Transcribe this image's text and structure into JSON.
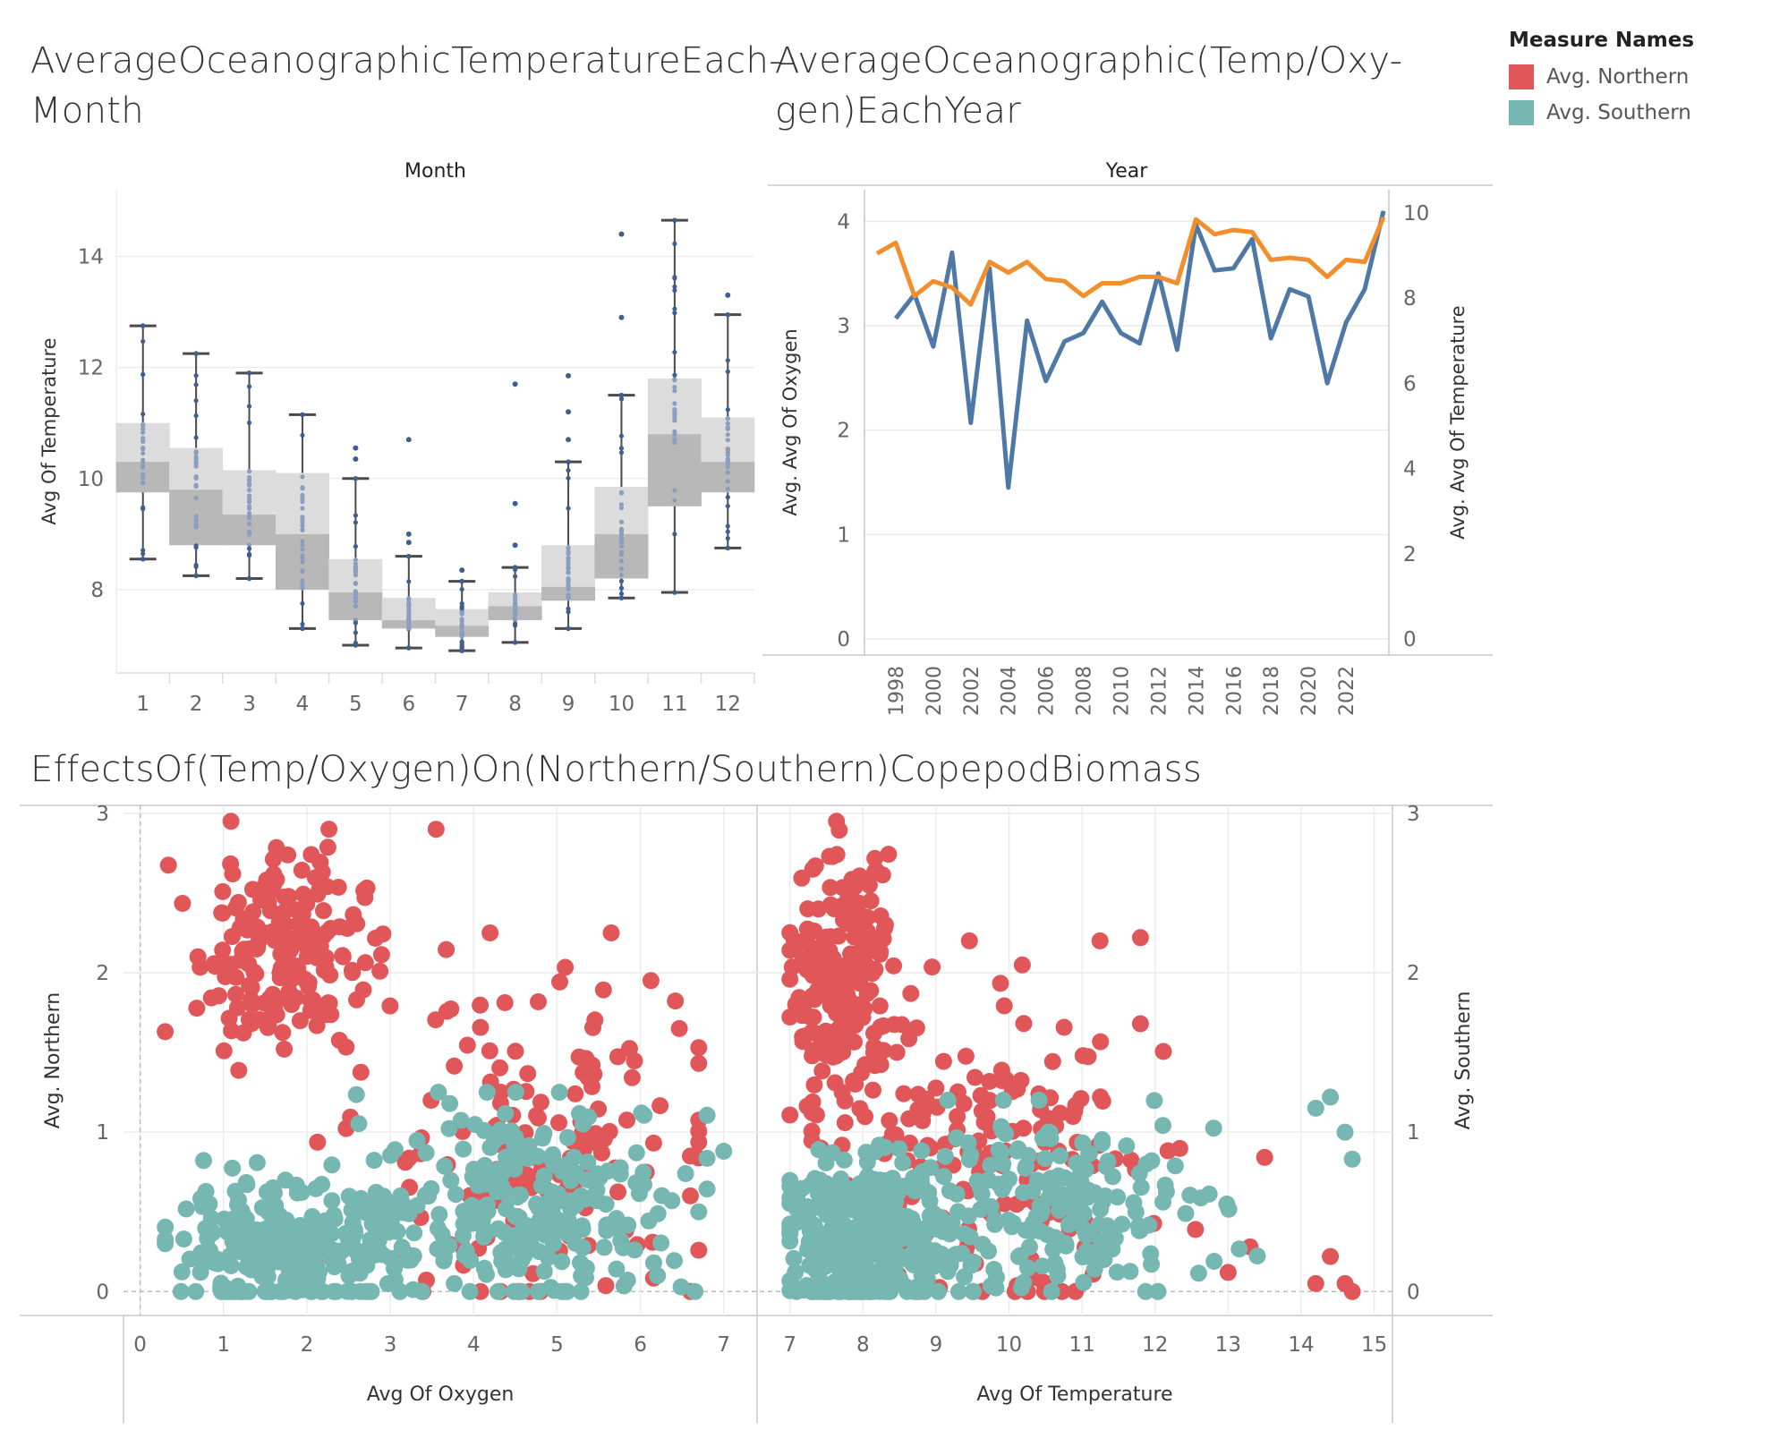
{
  "titles": {
    "box": "AverageOceanographicTemperatureEach-\nMonth",
    "line": "AverageOceanographic(Temp/Oxy-\ngen)EachYear",
    "scatter": "EffectsOf(Temp/Oxygen)On(Northern/Southern)CopepodBiomass"
  },
  "legend": {
    "title": "Measure Names",
    "items": [
      {
        "label": "Avg. Northern",
        "color": "#e15759"
      },
      {
        "label": "Avg. Southern",
        "color": "#76b7b2"
      }
    ]
  },
  "chart_data": [
    {
      "type": "box",
      "header": "Month",
      "ylabel": "Avg Of Temperature",
      "categories": [
        "1",
        "2",
        "3",
        "4",
        "5",
        "6",
        "7",
        "8",
        "9",
        "10",
        "11",
        "12"
      ],
      "yticks": [
        8,
        10,
        12,
        14
      ],
      "ylim": [
        6.5,
        15.2
      ],
      "boxes": [
        {
          "min": 8.55,
          "q1": 9.75,
          "median": 10.3,
          "q3": 11.0,
          "max": 12.75,
          "outliers": []
        },
        {
          "min": 8.25,
          "q1": 8.8,
          "median": 9.8,
          "q3": 10.55,
          "max": 12.25,
          "outliers": []
        },
        {
          "min": 8.2,
          "q1": 8.8,
          "median": 9.35,
          "q3": 10.15,
          "max": 11.9,
          "outliers": []
        },
        {
          "min": 7.3,
          "q1": 8.0,
          "median": 9.0,
          "q3": 10.1,
          "max": 11.15,
          "outliers": []
        },
        {
          "min": 7.0,
          "q1": 7.45,
          "median": 7.95,
          "q3": 8.55,
          "max": 10.0,
          "outliers": [
            10.35,
            10.55
          ]
        },
        {
          "min": 6.95,
          "q1": 7.3,
          "median": 7.45,
          "q3": 7.85,
          "max": 8.6,
          "outliers": [
            8.85,
            9.0,
            10.7
          ]
        },
        {
          "min": 6.9,
          "q1": 7.15,
          "median": 7.35,
          "q3": 7.65,
          "max": 8.15,
          "outliers": [
            8.35
          ]
        },
        {
          "min": 7.05,
          "q1": 7.45,
          "median": 7.7,
          "q3": 7.95,
          "max": 8.4,
          "outliers": [
            8.8,
            9.55,
            11.7
          ]
        },
        {
          "min": 7.3,
          "q1": 7.8,
          "median": 8.05,
          "q3": 8.8,
          "max": 10.3,
          "outliers": [
            10.7,
            11.2,
            11.85
          ]
        },
        {
          "min": 7.85,
          "q1": 8.2,
          "median": 9.0,
          "q3": 9.85,
          "max": 11.5,
          "outliers": [
            12.9,
            14.4
          ]
        },
        {
          "min": 7.95,
          "q1": 9.5,
          "median": 10.8,
          "q3": 11.8,
          "max": 14.65,
          "outliers": []
        },
        {
          "min": 8.75,
          "q1": 9.75,
          "median": 10.3,
          "q3": 11.1,
          "max": 12.95,
          "outliers": [
            13.3
          ]
        }
      ]
    },
    {
      "type": "line",
      "header": "Year",
      "xticks": [
        "1998",
        "2000",
        "2002",
        "2004",
        "2006",
        "2008",
        "2010",
        "2012",
        "2014",
        "2016",
        "2018",
        "2020",
        "2022"
      ],
      "y_left": {
        "label": "Avg. Avg Of Oxygen",
        "ticks": [
          0,
          1,
          2,
          3,
          4
        ],
        "range": [
          0,
          4.2
        ]
      },
      "y_right": {
        "label": "Avg. Avg Of Temperature",
        "ticks": [
          0,
          2,
          4,
          6,
          8,
          10
        ],
        "range": [
          0,
          10
        ]
      },
      "series": [
        {
          "color": "#4e79a7",
          "axis": "left",
          "points": [
            [
              1998,
              3.07
            ],
            [
              1999,
              3.3
            ],
            [
              2000,
              2.8
            ],
            [
              2001,
              3.7
            ],
            [
              2002,
              2.07
            ],
            [
              2003,
              3.55
            ],
            [
              2004,
              1.45
            ],
            [
              2005,
              3.05
            ],
            [
              2006,
              2.47
            ],
            [
              2007,
              2.85
            ],
            [
              2008,
              2.93
            ],
            [
              2009,
              3.23
            ],
            [
              2010,
              2.93
            ],
            [
              2011,
              2.83
            ],
            [
              2012,
              3.5
            ],
            [
              2013,
              2.77
            ],
            [
              2014,
              3.97
            ],
            [
              2015,
              3.53
            ],
            [
              2016,
              3.55
            ],
            [
              2017,
              3.83
            ],
            [
              2018,
              2.88
            ],
            [
              2019,
              3.35
            ],
            [
              2020,
              3.28
            ],
            [
              2021,
              2.45
            ],
            [
              2022,
              3.03
            ],
            [
              2023,
              3.35
            ],
            [
              2024,
              4.1
            ]
          ]
        },
        {
          "color": "#f28e2b",
          "axis": "right",
          "points": [
            [
              1997,
              9.05
            ],
            [
              1998,
              9.3
            ],
            [
              1999,
              8.05
            ],
            [
              2000,
              8.4
            ],
            [
              2001,
              8.25
            ],
            [
              2002,
              7.85
            ],
            [
              2003,
              8.85
            ],
            [
              2004,
              8.6
            ],
            [
              2005,
              8.85
            ],
            [
              2006,
              8.45
            ],
            [
              2007,
              8.4
            ],
            [
              2008,
              8.05
            ],
            [
              2009,
              8.35
            ],
            [
              2010,
              8.35
            ],
            [
              2011,
              8.5
            ],
            [
              2012,
              8.5
            ],
            [
              2013,
              8.35
            ],
            [
              2014,
              9.85
            ],
            [
              2015,
              9.5
            ],
            [
              2016,
              9.6
            ],
            [
              2017,
              9.55
            ],
            [
              2018,
              8.9
            ],
            [
              2019,
              8.95
            ],
            [
              2020,
              8.9
            ],
            [
              2021,
              8.5
            ],
            [
              2022,
              8.9
            ],
            [
              2023,
              8.85
            ],
            [
              2024,
              9.9
            ]
          ]
        }
      ]
    },
    {
      "type": "scatter",
      "panels": [
        {
          "xlabel": "Avg Of Oxygen",
          "xticks": [
            0,
            1,
            2,
            3,
            4,
            5,
            6,
            7
          ],
          "xlim": [
            -0.2,
            7.4
          ]
        },
        {
          "xlabel": "Avg Of Temperature",
          "xticks": [
            7,
            8,
            9,
            10,
            11,
            12,
            13,
            14,
            15
          ],
          "xlim": [
            6.55,
            15.25
          ]
        }
      ],
      "y_left": {
        "label": "Avg. Northern",
        "ticks": [
          0,
          1,
          2,
          3
        ],
        "range": [
          -0.15,
          3.05
        ]
      },
      "y_right": {
        "label": "Avg. Southern",
        "ticks": [
          0,
          1,
          2,
          3
        ]
      },
      "series": [
        {
          "name": "Avg. Northern",
          "color": "#e15759"
        },
        {
          "name": "Avg. Southern",
          "color": "#76b7b2"
        }
      ],
      "clusters": [
        {
          "panel": 0,
          "series": 0,
          "n": 190,
          "cx": 1.7,
          "cy": 2.15,
          "sx": 0.5,
          "sy": 0.32,
          "xmin": 0.25,
          "xmax": 3.7,
          "ymin": 1.1,
          "ymax": 2.95
        },
        {
          "panel": 0,
          "series": 0,
          "n": 150,
          "cx": 4.6,
          "cy": 0.9,
          "sx": 1.0,
          "sy": 0.55,
          "xmin": 2.0,
          "xmax": 6.7,
          "ymin": 0,
          "ymax": 2.25
        },
        {
          "panel": 0,
          "series": 1,
          "n": 260,
          "cx": 1.8,
          "cy": 0.25,
          "sx": 0.7,
          "sy": 0.2,
          "xmin": 0.3,
          "xmax": 3.6,
          "ymin": 0,
          "ymax": 1.3
        },
        {
          "panel": 0,
          "series": 1,
          "n": 250,
          "cx": 4.7,
          "cy": 0.55,
          "sx": 1.0,
          "sy": 0.32,
          "xmin": 2.3,
          "xmax": 6.8,
          "ymin": 0,
          "ymax": 1.25
        },
        {
          "panel": 1,
          "series": 0,
          "n": 210,
          "cx": 7.7,
          "cy": 1.9,
          "sx": 0.35,
          "sy": 0.4,
          "xmin": 7.0,
          "xmax": 9.1,
          "ymin": 0.9,
          "ymax": 2.95
        },
        {
          "panel": 1,
          "series": 0,
          "n": 170,
          "cx": 9.8,
          "cy": 0.8,
          "sx": 1.2,
          "sy": 0.5,
          "xmin": 7.3,
          "xmax": 13.5,
          "ymin": 0,
          "ymax": 2.2
        },
        {
          "panel": 1,
          "series": 1,
          "n": 320,
          "cx": 8.0,
          "cy": 0.3,
          "sx": 0.55,
          "sy": 0.24,
          "xmin": 7.0,
          "xmax": 9.5,
          "ymin": 0,
          "ymax": 1.35
        },
        {
          "panel": 1,
          "series": 1,
          "n": 200,
          "cx": 10.5,
          "cy": 0.55,
          "sx": 1.2,
          "sy": 0.28,
          "xmin": 8.3,
          "xmax": 13.4,
          "ymin": 0,
          "ymax": 1.2
        }
      ],
      "extra_points": [
        {
          "panel": 1,
          "series": 1,
          "x": 14.2,
          "y": 1.15
        },
        {
          "panel": 1,
          "series": 1,
          "x": 14.4,
          "y": 1.22
        },
        {
          "panel": 1,
          "series": 1,
          "x": 14.6,
          "y": 1.0
        },
        {
          "panel": 1,
          "series": 1,
          "x": 14.7,
          "y": 0.83
        },
        {
          "panel": 1,
          "series": 0,
          "x": 14.2,
          "y": 0.05
        },
        {
          "panel": 1,
          "series": 0,
          "x": 14.4,
          "y": 0.22
        },
        {
          "panel": 1,
          "series": 0,
          "x": 14.6,
          "y": 0.05
        },
        {
          "panel": 1,
          "series": 0,
          "x": 14.7,
          "y": 0.0
        },
        {
          "panel": 1,
          "series": 0,
          "x": 11.8,
          "y": 2.22
        },
        {
          "panel": 1,
          "series": 0,
          "x": 11.8,
          "y": 1.68
        },
        {
          "panel": 1,
          "series": 0,
          "x": 13.3,
          "y": 0.28
        },
        {
          "panel": 1,
          "series": 0,
          "x": 13.0,
          "y": 0.12
        },
        {
          "panel": 0,
          "series": 0,
          "x": 6.6,
          "y": 0.6
        },
        {
          "panel": 0,
          "series": 0,
          "x": 6.6,
          "y": 0.85
        },
        {
          "panel": 0,
          "series": 0,
          "x": 6.6,
          "y": 0.0
        },
        {
          "panel": 0,
          "series": 1,
          "x": 7.0,
          "y": 0.88
        },
        {
          "panel": 0,
          "series": 1,
          "x": 6.7,
          "y": 0.5
        },
        {
          "panel": 0,
          "series": 0,
          "x": 0.3,
          "y": 1.63
        },
        {
          "panel": 0,
          "series": 0,
          "x": 3.55,
          "y": 2.9
        },
        {
          "panel": 0,
          "series": 0,
          "x": 5.65,
          "y": 2.25
        }
      ]
    }
  ]
}
